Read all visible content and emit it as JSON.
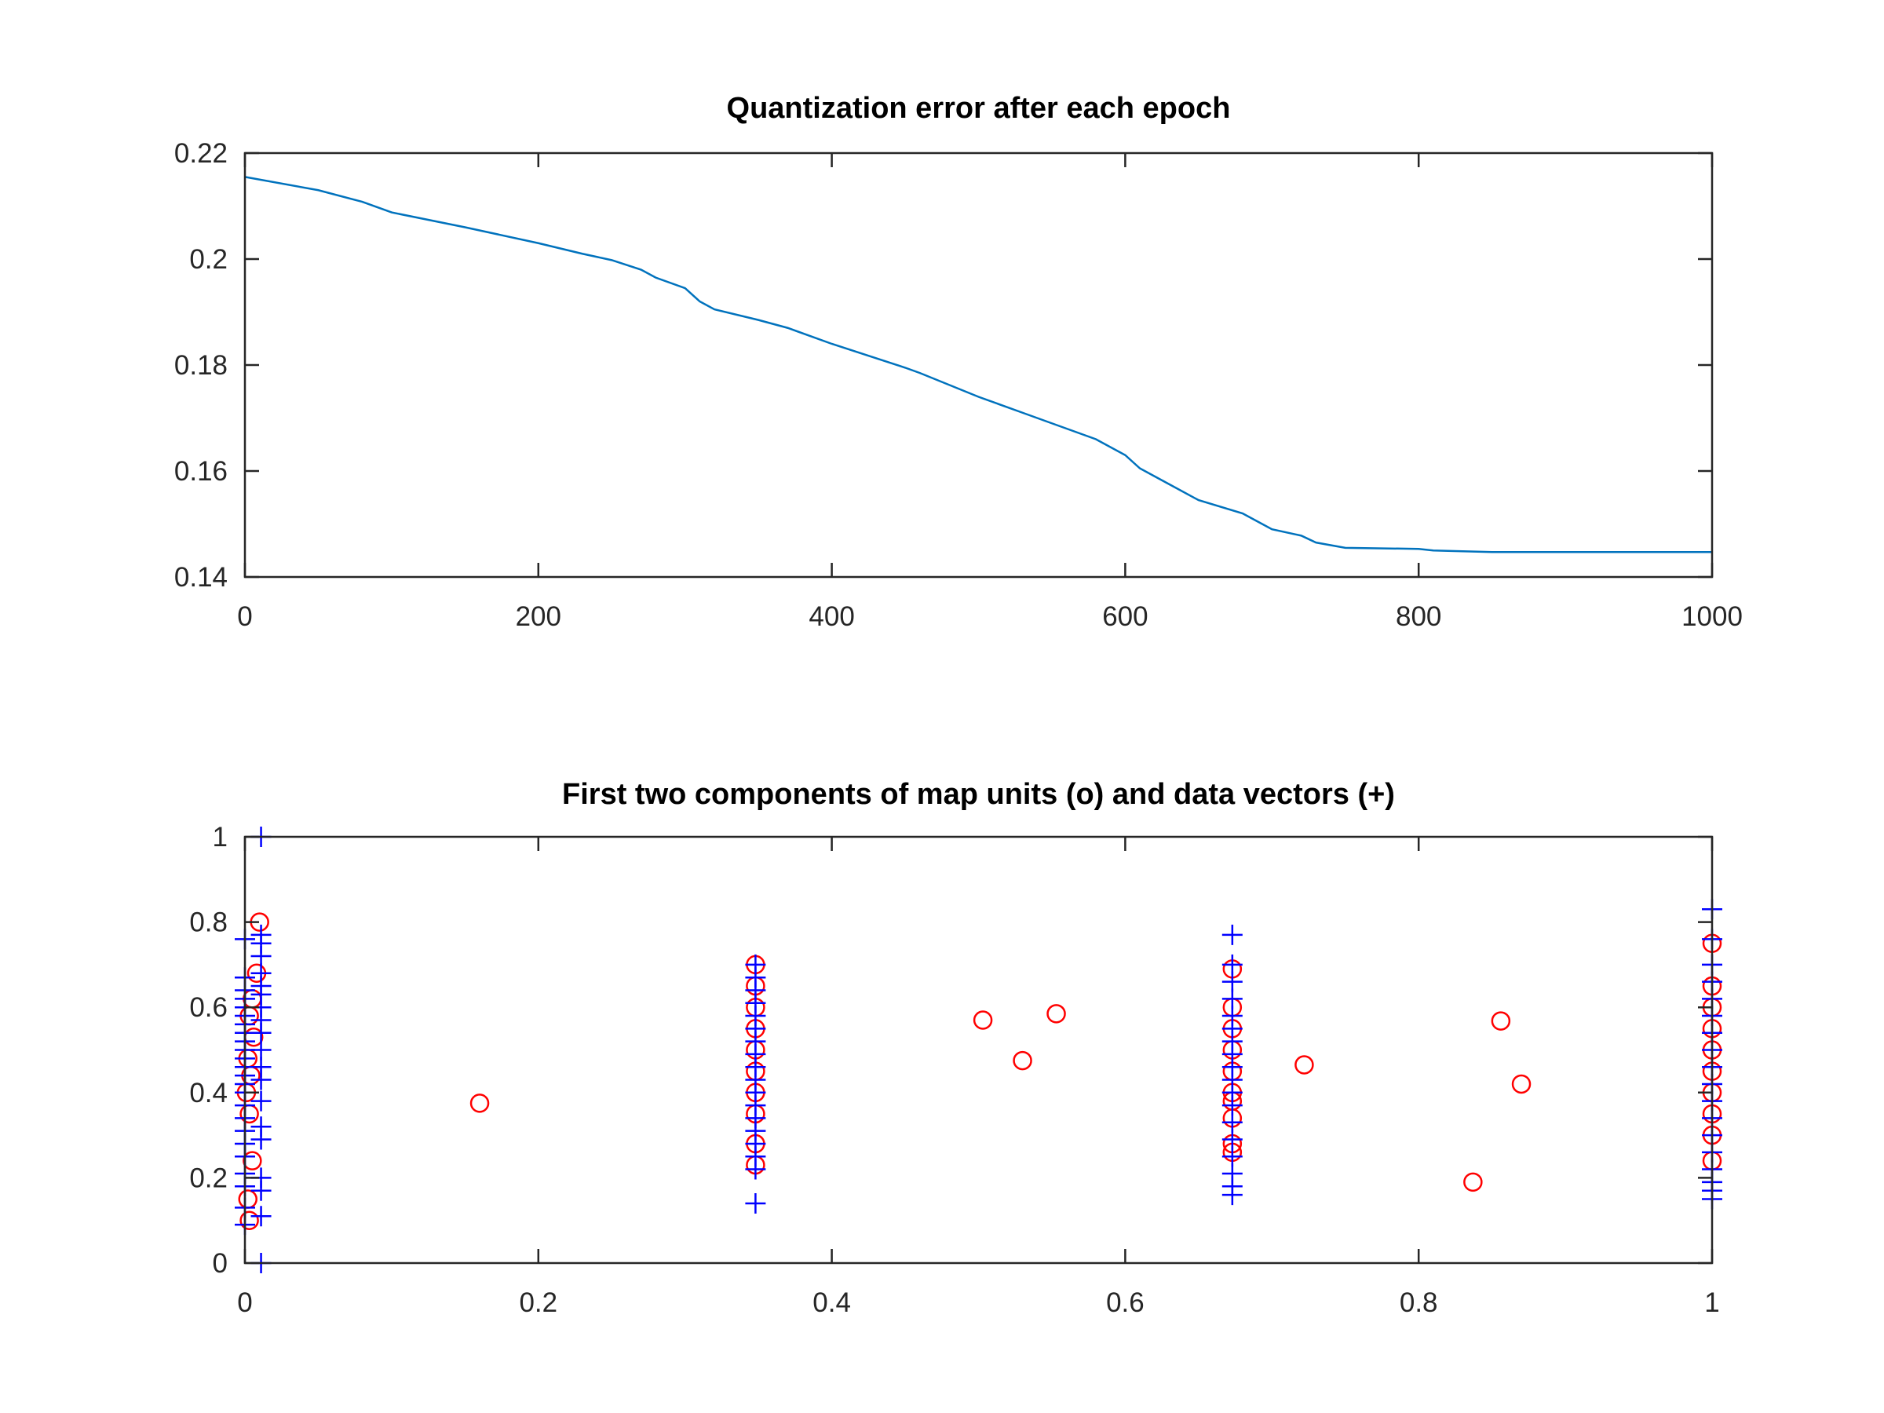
{
  "chart_data": [
    {
      "type": "line",
      "title": "Quantization error after each epoch",
      "xlabel": "",
      "ylabel": "",
      "xlim": [
        0,
        1000
      ],
      "ylim": [
        0.14,
        0.22
      ],
      "xticks": [
        "0",
        "200",
        "400",
        "600",
        "800",
        "1000"
      ],
      "yticks": [
        "0.14",
        "0.16",
        "0.18",
        "0.2",
        "0.22"
      ],
      "grid": false,
      "color": "#0072BD",
      "x": [
        0,
        50,
        80,
        90,
        100,
        150,
        200,
        230,
        250,
        270,
        280,
        300,
        310,
        320,
        350,
        370,
        400,
        450,
        460,
        500,
        530,
        550,
        580,
        600,
        610,
        620,
        630,
        650,
        680,
        690,
        700,
        720,
        730,
        750,
        800,
        810,
        850,
        900,
        1000
      ],
      "y": [
        0.2155,
        0.213,
        0.2108,
        0.2098,
        0.2088,
        0.206,
        0.203,
        0.201,
        0.1998,
        0.198,
        0.1965,
        0.1945,
        0.192,
        0.1905,
        0.1885,
        0.187,
        0.184,
        0.1795,
        0.1785,
        0.174,
        0.171,
        0.169,
        0.166,
        0.163,
        0.1605,
        0.159,
        0.1575,
        0.1545,
        0.152,
        0.1505,
        0.149,
        0.1478,
        0.1465,
        0.1455,
        0.1453,
        0.145,
        0.1447,
        0.1447,
        0.1447
      ]
    },
    {
      "type": "scatter",
      "title": "First two components of map units (o) and data vectors (+)",
      "xlabel": "",
      "ylabel": "",
      "xlim": [
        0,
        1
      ],
      "ylim": [
        0,
        1
      ],
      "xticks": [
        "0",
        "0.2",
        "0.4",
        "0.6",
        "0.8",
        "1"
      ],
      "yticks": [
        "0",
        "0.2",
        "0.4",
        "0.6",
        "0.8",
        "1"
      ],
      "grid": false,
      "series": [
        {
          "marker": "o",
          "color": "#FF0000",
          "x": [
            0.01,
            0.008,
            0.005,
            0.003,
            0.006,
            0.002,
            0.004,
            0.001,
            0.003,
            0.005,
            0.002,
            0.003,
            0.16,
            0.348,
            0.348,
            0.348,
            0.348,
            0.348,
            0.348,
            0.348,
            0.348,
            0.348,
            0.348,
            0.503,
            0.53,
            0.553,
            0.673,
            0.673,
            0.673,
            0.673,
            0.673,
            0.673,
            0.673,
            0.673,
            0.673,
            0.673,
            0.722,
            0.837,
            0.856,
            0.87,
            1,
            1,
            1,
            1,
            1,
            1,
            1,
            1,
            1,
            1
          ],
          "y": [
            0.8,
            0.68,
            0.62,
            0.58,
            0.53,
            0.48,
            0.44,
            0.4,
            0.35,
            0.24,
            0.15,
            0.1,
            0.375,
            0.7,
            0.65,
            0.6,
            0.55,
            0.5,
            0.45,
            0.4,
            0.35,
            0.28,
            0.23,
            0.57,
            0.475,
            0.585,
            0.69,
            0.6,
            0.55,
            0.5,
            0.45,
            0.4,
            0.34,
            0.28,
            0.26,
            0.38,
            0.465,
            0.19,
            0.568,
            0.42,
            0.75,
            0.65,
            0.6,
            0.55,
            0.5,
            0.45,
            0.4,
            0.35,
            0.3,
            0.24
          ]
        },
        {
          "marker": "+",
          "color": "#0000FF",
          "x": [
            0.011,
            0.011,
            0.011,
            0.011,
            0.011,
            0.011,
            0.011,
            0.011,
            0.011,
            0.011,
            0.011,
            0.011,
            0.011,
            0.011,
            0.011,
            0.011,
            0.011,
            0.011,
            0.011,
            0.011,
            0,
            0,
            0,
            0,
            0,
            0,
            0,
            0,
            0,
            0,
            0,
            0,
            0,
            0,
            0,
            0,
            0,
            0,
            0,
            0,
            0,
            0,
            0,
            0,
            0.348,
            0.348,
            0.348,
            0.348,
            0.348,
            0.348,
            0.348,
            0.348,
            0.348,
            0.348,
            0.348,
            0.348,
            0.348,
            0.348,
            0.348,
            0.348,
            0.348,
            0.348,
            0.673,
            0.673,
            0.673,
            0.673,
            0.673,
            0.673,
            0.673,
            0.673,
            0.673,
            0.673,
            0.673,
            0.673,
            0.673,
            0.673,
            0.673,
            0.673,
            0.673,
            0.673,
            1,
            1,
            1,
            1,
            1,
            1,
            1,
            1,
            1,
            1,
            1,
            1,
            1,
            1,
            1,
            1,
            1,
            1
          ],
          "y": [
            1.0,
            0.77,
            0.75,
            0.72,
            0.68,
            0.65,
            0.63,
            0.6,
            0.57,
            0.54,
            0.5,
            0.46,
            0.43,
            0.38,
            0.32,
            0.29,
            0.2,
            0.17,
            0.11,
            0.0,
            0.76,
            0.67,
            0.64,
            0.62,
            0.6,
            0.58,
            0.56,
            0.54,
            0.52,
            0.5,
            0.48,
            0.46,
            0.44,
            0.42,
            0.4,
            0.37,
            0.34,
            0.31,
            0.28,
            0.25,
            0.21,
            0.18,
            0.13,
            0.09,
            0.7,
            0.67,
            0.64,
            0.61,
            0.58,
            0.55,
            0.52,
            0.49,
            0.46,
            0.43,
            0.4,
            0.37,
            0.34,
            0.31,
            0.28,
            0.25,
            0.22,
            0.14,
            0.77,
            0.7,
            0.66,
            0.62,
            0.58,
            0.55,
            0.52,
            0.49,
            0.46,
            0.43,
            0.4,
            0.37,
            0.33,
            0.29,
            0.25,
            0.21,
            0.18,
            0.16,
            0.83,
            0.76,
            0.7,
            0.66,
            0.62,
            0.58,
            0.54,
            0.5,
            0.46,
            0.42,
            0.38,
            0.34,
            0.3,
            0.26,
            0.22,
            0.19,
            0.17,
            0.15
          ]
        }
      ]
    }
  ]
}
